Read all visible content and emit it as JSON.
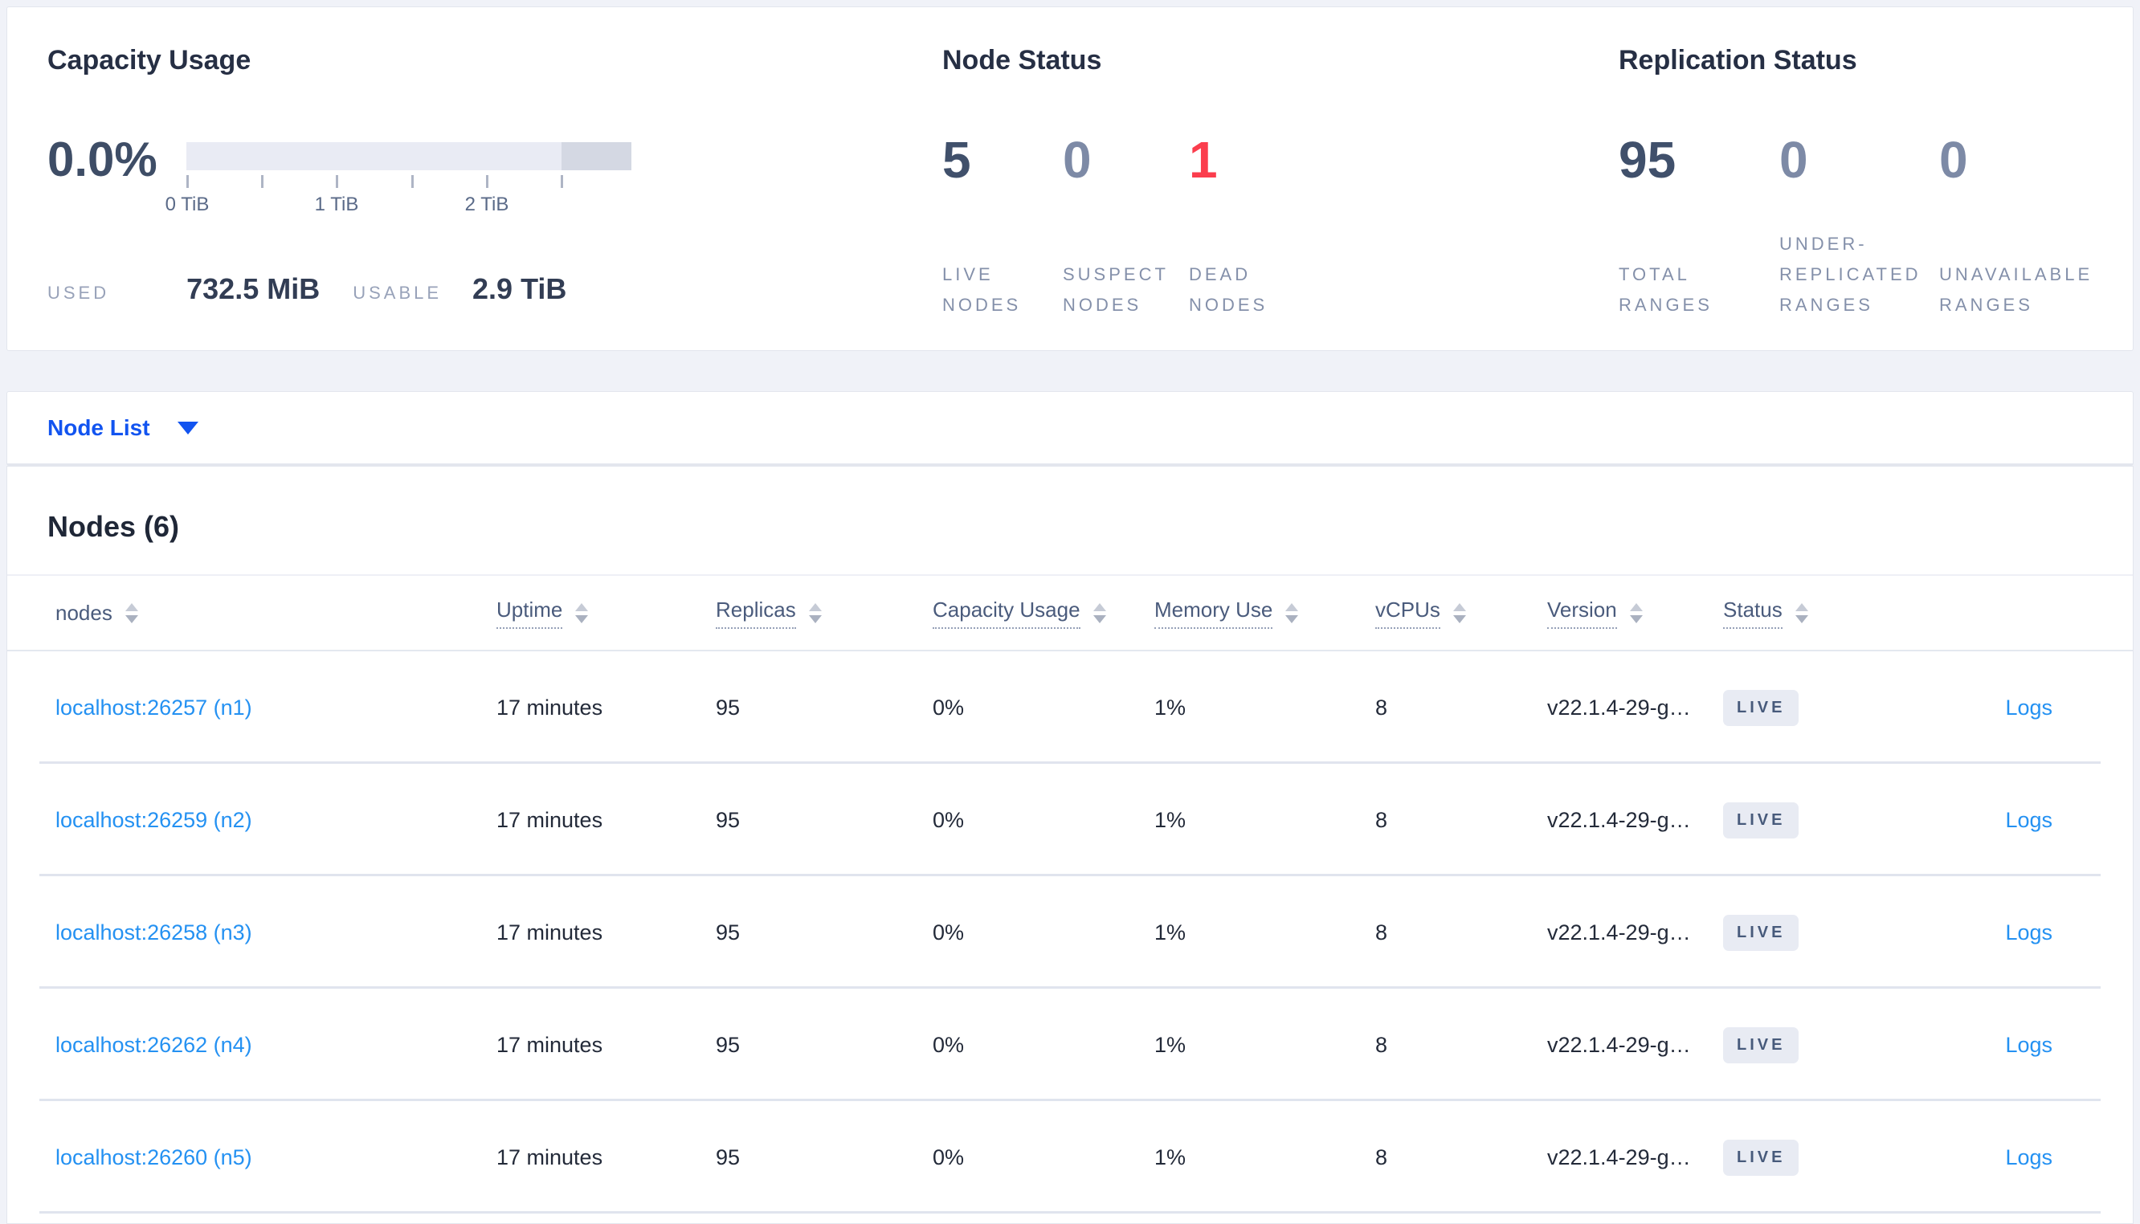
{
  "theme": {
    "page_bg": "#f0f2f8",
    "primary_blue": "#1254f0",
    "link_blue": "#2491f2",
    "badge_bg": "#e8ebf3",
    "dead_red": "#fb3d4d",
    "stat_dark": "#40506b",
    "stat_muted": "#7d8aa6"
  },
  "summary": {
    "capacity": {
      "title": "Capacity Usage",
      "percent": "0.0%",
      "tick_labels": [
        "0 TiB",
        "1 TiB",
        "2 TiB"
      ],
      "used_label": "USED",
      "used_value": "732.5 MiB",
      "usable_label": "USABLE",
      "usable_value": "2.9 TiB"
    },
    "node_status": {
      "title": "Node Status",
      "stats": [
        {
          "value": "5",
          "label": "LIVE NODES",
          "color": "#40506b"
        },
        {
          "value": "0",
          "label": "SUSPECT NODES",
          "color": "#7d8aa6"
        },
        {
          "value": "1",
          "label": "DEAD NODES",
          "color": "#fb3d4d"
        }
      ]
    },
    "replication_status": {
      "title": "Replication Status",
      "stats": [
        {
          "value": "95",
          "label": "TOTAL RANGES",
          "color": "#40506b"
        },
        {
          "value": "0",
          "label": "UNDER-REPLICATED RANGES",
          "color": "#7d8aa6"
        },
        {
          "value": "0",
          "label": "UNAVAILABLE RANGES",
          "color": "#7d8aa6"
        }
      ]
    }
  },
  "node_list_bar": {
    "label": "Node List"
  },
  "nodes_table": {
    "heading": "Nodes (6)",
    "columns": [
      {
        "label": "nodes",
        "sortable": true,
        "dotted": false
      },
      {
        "label": "Uptime",
        "sortable": true,
        "dotted": true
      },
      {
        "label": "Replicas",
        "sortable": true,
        "dotted": true
      },
      {
        "label": "Capacity Usage",
        "sortable": true,
        "dotted": true
      },
      {
        "label": "Memory Use",
        "sortable": true,
        "dotted": true
      },
      {
        "label": "vCPUs",
        "sortable": true,
        "dotted": true
      },
      {
        "label": "Version",
        "sortable": true,
        "dotted": true
      },
      {
        "label": "Status",
        "sortable": true,
        "dotted": true
      },
      {
        "label": "",
        "sortable": false,
        "dotted": false
      }
    ],
    "rows": [
      {
        "node": "localhost:26257 (n1)",
        "uptime": "17 minutes",
        "replicas": "95",
        "capacity_usage": "0%",
        "memory_use": "1%",
        "vcpus": "8",
        "version": "v22.1.4-29-g…",
        "status": "LIVE",
        "logs": "Logs"
      },
      {
        "node": "localhost:26259 (n2)",
        "uptime": "17 minutes",
        "replicas": "95",
        "capacity_usage": "0%",
        "memory_use": "1%",
        "vcpus": "8",
        "version": "v22.1.4-29-g…",
        "status": "LIVE",
        "logs": "Logs"
      },
      {
        "node": "localhost:26258 (n3)",
        "uptime": "17 minutes",
        "replicas": "95",
        "capacity_usage": "0%",
        "memory_use": "1%",
        "vcpus": "8",
        "version": "v22.1.4-29-g…",
        "status": "LIVE",
        "logs": "Logs"
      },
      {
        "node": "localhost:26262 (n4)",
        "uptime": "17 minutes",
        "replicas": "95",
        "capacity_usage": "0%",
        "memory_use": "1%",
        "vcpus": "8",
        "version": "v22.1.4-29-g…",
        "status": "LIVE",
        "logs": "Logs"
      },
      {
        "node": "localhost:26260 (n5)",
        "uptime": "17 minutes",
        "replicas": "95",
        "capacity_usage": "0%",
        "memory_use": "1%",
        "vcpus": "8",
        "version": "v22.1.4-29-g…",
        "status": "LIVE",
        "logs": "Logs"
      }
    ]
  }
}
